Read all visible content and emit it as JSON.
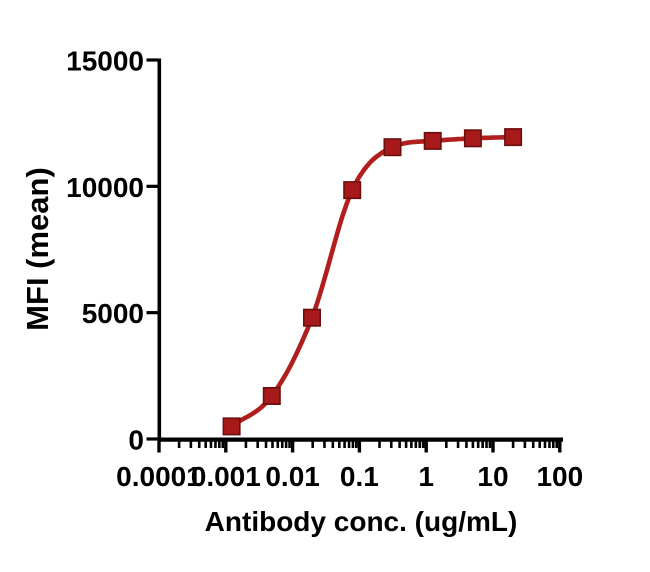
{
  "figure": {
    "background": "#FFFFFF",
    "axis_color": "#000000"
  },
  "chart_data": {
    "type": "scatter",
    "title": "",
    "xlabel": "Antibody conc. (ug/mL)",
    "ylabel": "MFI (mean)",
    "x_scale": "log10",
    "xlim": [
      0.0001,
      100
    ],
    "ylim": [
      0,
      15000
    ],
    "grid": false,
    "legend": "none",
    "x_tick_values": [
      0.0001,
      0.001,
      0.01,
      0.1,
      1,
      10,
      100
    ],
    "x_tick_labels": [
      "0.0001",
      "0.001",
      "0.01",
      "0.1",
      "1",
      "10",
      "100"
    ],
    "x_minor_ticks": "log-decade minors at 2-9 within each decade",
    "y_tick_values": [
      0,
      5000,
      10000,
      15000
    ],
    "y_tick_labels": [
      "0",
      "5000",
      "10000",
      "15000"
    ],
    "series": [
      {
        "marker": "filled-square",
        "marker_fill": "#A81A1A",
        "marker_outline": "#6B0E0E",
        "line_color": "#B01E1E",
        "line_style": "smooth sigmoidal fit through points",
        "x": [
          0.00122,
          0.00488,
          0.0195,
          0.078,
          0.3125,
          1.25,
          5,
          20
        ],
        "y": [
          500,
          1700,
          4800,
          9850,
          11550,
          11800,
          11900,
          11950
        ]
      }
    ]
  }
}
